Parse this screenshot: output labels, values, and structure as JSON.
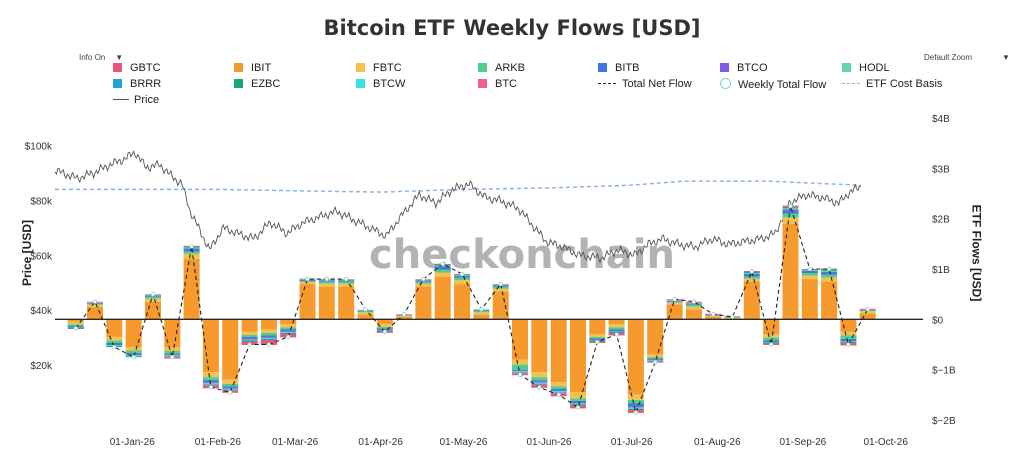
{
  "title": "Bitcoin ETF Weekly Flows [USD]",
  "controls": {
    "info_label": "Info On",
    "zoom_label": "Default Zoom",
    "dropdown_glyph": "▼"
  },
  "watermark": "checkonchain",
  "legend": [
    {
      "label": "GBTC",
      "kind": "box",
      "color": "#e8547f"
    },
    {
      "label": "IBIT",
      "kind": "box",
      "color": "#f79a2e"
    },
    {
      "label": "FBTC",
      "kind": "box",
      "color": "#f5c04f"
    },
    {
      "label": "ARKB",
      "kind": "box",
      "color": "#4fd08a"
    },
    {
      "label": "BITB",
      "kind": "box",
      "color": "#3a78e0"
    },
    {
      "label": "BTCO",
      "kind": "box",
      "color": "#7d5ee8"
    },
    {
      "label": "HODL",
      "kind": "box",
      "color": "#62d6a8"
    },
    {
      "label": "BRRR",
      "kind": "box",
      "color": "#1fa3d8"
    },
    {
      "label": "EZBC",
      "kind": "box",
      "color": "#1aa86d"
    },
    {
      "label": "BTCW",
      "kind": "box",
      "color": "#36e2e2"
    },
    {
      "label": "BTC",
      "kind": "box",
      "color": "#ef5f90"
    },
    {
      "label": "Total Net Flow",
      "kind": "dash",
      "color": "#222222"
    },
    {
      "label": "Weekly Total Flow",
      "kind": "circle",
      "color": "#7fd6b4"
    },
    {
      "label": "ETF Cost Basis",
      "kind": "ecb",
      "color": "#8cb6e0"
    },
    {
      "label": "Price",
      "kind": "line",
      "color": "#555555"
    }
  ],
  "chart_data": {
    "type": "bar",
    "stacked": true,
    "xlabel": "",
    "ylabel_left": "Price [USD]",
    "ylabel_right": "ETF Flows [USD]",
    "ylim_left": [
      0,
      110000
    ],
    "ylim_right": [
      -2000000000,
      4000000000
    ],
    "left_ticks": [
      "$20k",
      "$40k",
      "$60k",
      "$80k",
      "$100k"
    ],
    "left_tick_values": [
      20000,
      40000,
      60000,
      80000,
      100000
    ],
    "right_ticks": [
      "$−2B",
      "$−1B",
      "$0",
      "$1B",
      "$2B",
      "$3B",
      "$4B"
    ],
    "right_tick_values": [
      -2000000000,
      -1000000000,
      0,
      1000000000,
      2000000000,
      3000000000,
      4000000000
    ],
    "x_ticks": [
      "01-Jan-26",
      "01-Feb-26",
      "01-Mar-26",
      "01-Apr-26",
      "01-May-26",
      "01-Jun-26",
      "01-Jul-26",
      "01-Aug-26",
      "01-Sep-26",
      "01-Oct-26"
    ],
    "x_tick_days": [
      0,
      31,
      59,
      90,
      120,
      151,
      181,
      212,
      243,
      273
    ],
    "week_start_days": [
      -24,
      -17,
      -10,
      -3,
      4,
      11,
      18,
      25,
      32,
      39,
      46,
      53,
      60,
      67,
      74,
      81,
      88,
      95,
      102,
      109,
      116,
      123,
      130,
      137,
      144,
      151,
      158,
      165,
      172,
      179,
      186,
      193,
      200,
      207,
      214,
      221,
      228,
      235,
      242,
      249,
      256,
      263
    ],
    "weekly_flows_billions": [
      -0.18,
      0.35,
      -0.55,
      -0.75,
      0.5,
      -0.75,
      1.45,
      -1.35,
      -1.45,
      -0.5,
      -0.5,
      -0.35,
      0.8,
      0.8,
      0.8,
      0.2,
      -0.25,
      0.1,
      0.8,
      1.1,
      0.9,
      0.2,
      0.7,
      -1.1,
      -1.35,
      -1.5,
      -1.75,
      -0.45,
      -0.3,
      -1.85,
      -0.85,
      0.4,
      0.35,
      0.1,
      0.05,
      0.95,
      -0.5,
      2.25,
      1.0,
      1.0,
      -0.5,
      0.2
    ],
    "series": [
      {
        "name": "IBIT",
        "values": [
          -0.05,
          0.25,
          -0.35,
          -0.55,
          0.35,
          -0.55,
          1.2,
          -1.05,
          -1.2,
          -0.25,
          -0.2,
          -0.1,
          0.7,
          0.65,
          0.65,
          0.1,
          -0.1,
          0.05,
          0.65,
          0.85,
          0.7,
          0.1,
          0.55,
          -0.8,
          -1.05,
          -1.25,
          -1.45,
          -0.3,
          -0.1,
          -1.5,
          -0.7,
          0.3,
          0.2,
          0.05,
          0.02,
          0.75,
          -0.3,
          1.9,
          0.8,
          0.75,
          -0.25,
          0.12
        ]
      },
      {
        "name": "FBTC",
        "values": [
          -0.05,
          0.04,
          -0.07,
          -0.07,
          0.06,
          -0.08,
          0.1,
          -0.1,
          -0.08,
          -0.06,
          -0.07,
          -0.06,
          0.04,
          0.06,
          0.06,
          0.04,
          -0.05,
          0.02,
          0.06,
          0.08,
          0.08,
          0.04,
          0.06,
          -0.1,
          -0.1,
          -0.08,
          -0.12,
          -0.05,
          -0.06,
          -0.1,
          -0.05,
          0.03,
          0.05,
          0.02,
          0.01,
          0.06,
          -0.06,
          0.12,
          0.07,
          0.08,
          -0.07,
          0.04
        ]
      },
      {
        "name": "ARKB",
        "values": [
          -0.03,
          0.02,
          -0.05,
          -0.05,
          0.04,
          -0.05,
          0.05,
          -0.06,
          -0.05,
          -0.04,
          -0.05,
          -0.04,
          0.02,
          0.04,
          0.04,
          0.02,
          -0.03,
          0.01,
          0.04,
          0.06,
          0.05,
          0.03,
          0.04,
          -0.1,
          -0.06,
          -0.05,
          -0.05,
          -0.03,
          -0.04,
          -0.07,
          -0.03,
          0.02,
          0.04,
          0.01,
          0.01,
          0.04,
          -0.06,
          0.08,
          0.05,
          0.06,
          -0.07,
          0.02
        ]
      },
      {
        "name": "BITB",
        "values": [
          -0.01,
          0.01,
          -0.03,
          -0.03,
          0.02,
          -0.02,
          0.04,
          -0.04,
          -0.03,
          -0.03,
          -0.03,
          -0.03,
          0.02,
          0.02,
          0.02,
          0.01,
          -0.02,
          0.01,
          0.02,
          0.04,
          0.02,
          0.01,
          0.02,
          -0.02,
          -0.03,
          -0.03,
          -0.03,
          -0.02,
          -0.03,
          -0.05,
          -0.02,
          0.01,
          0.02,
          0.01,
          0.0,
          0.03,
          -0.02,
          0.05,
          0.03,
          0.03,
          -0.03,
          0.01
        ]
      },
      {
        "name": "BTCO",
        "values": [
          -0.01,
          0.01,
          -0.01,
          -0.01,
          0.01,
          -0.01,
          0.02,
          -0.02,
          -0.02,
          -0.02,
          -0.02,
          -0.02,
          0.01,
          0.01,
          0.01,
          0.01,
          -0.01,
          0.0,
          0.01,
          0.02,
          0.01,
          0.01,
          0.01,
          -0.01,
          -0.02,
          -0.02,
          -0.02,
          -0.01,
          -0.01,
          -0.03,
          -0.01,
          0.01,
          0.01,
          0.0,
          0.0,
          0.02,
          -0.01,
          0.03,
          0.01,
          0.02,
          -0.01,
          0.0
        ]
      },
      {
        "name": "HODL",
        "values": [
          -0.01,
          0.01,
          -0.02,
          -0.02,
          0.01,
          -0.02,
          0.02,
          -0.02,
          -0.02,
          -0.02,
          -0.02,
          -0.02,
          0.01,
          0.01,
          0.01,
          0.01,
          -0.01,
          0.0,
          0.01,
          0.02,
          0.02,
          0.01,
          0.01,
          -0.02,
          -0.02,
          -0.02,
          -0.02,
          -0.01,
          -0.01,
          -0.03,
          -0.01,
          0.01,
          0.01,
          0.0,
          0.0,
          0.02,
          -0.01,
          0.03,
          0.02,
          0.03,
          -0.02,
          0.0
        ]
      },
      {
        "name": "BRRR",
        "values": [
          -0.01,
          0.0,
          -0.01,
          -0.01,
          0.0,
          -0.01,
          0.01,
          -0.01,
          -0.01,
          -0.01,
          -0.01,
          -0.01,
          0.0,
          0.0,
          0.0,
          0.0,
          -0.01,
          0.0,
          0.0,
          0.01,
          0.01,
          0.0,
          0.0,
          -0.01,
          -0.01,
          -0.01,
          -0.01,
          -0.01,
          -0.01,
          -0.01,
          -0.01,
          0.0,
          0.0,
          0.0,
          0.0,
          0.01,
          -0.01,
          0.01,
          0.01,
          0.01,
          -0.01,
          0.0
        ]
      },
      {
        "name": "EZBC",
        "values": [
          -0.01,
          0.0,
          -0.01,
          -0.01,
          0.0,
          -0.01,
          0.01,
          -0.01,
          -0.01,
          -0.01,
          -0.01,
          -0.01,
          0.0,
          0.0,
          0.0,
          0.0,
          -0.01,
          0.0,
          0.0,
          0.01,
          0.0,
          0.0,
          0.0,
          -0.01,
          -0.01,
          -0.01,
          -0.01,
          -0.01,
          -0.01,
          -0.01,
          -0.01,
          0.0,
          0.0,
          0.0,
          0.0,
          0.01,
          -0.01,
          0.01,
          0.0,
          0.01,
          -0.01,
          0.0
        ]
      },
      {
        "name": "BTCW",
        "values": [
          0.0,
          0.0,
          0.0,
          0.0,
          0.0,
          0.0,
          0.0,
          0.0,
          0.0,
          0.0,
          0.0,
          0.0,
          0.0,
          0.0,
          0.0,
          0.0,
          0.0,
          0.0,
          0.0,
          0.0,
          0.0,
          0.0,
          0.0,
          0.0,
          0.0,
          0.0,
          0.0,
          0.0,
          0.0,
          0.0,
          0.0,
          0.0,
          0.0,
          0.0,
          0.0,
          0.0,
          0.0,
          0.0,
          0.0,
          0.0,
          0.0,
          0.0
        ]
      },
      {
        "name": "BTC",
        "values": [
          0.0,
          0.01,
          0.0,
          0.0,
          0.01,
          -0.01,
          0.01,
          -0.01,
          -0.01,
          -0.01,
          -0.01,
          -0.01,
          0.01,
          0.01,
          0.01,
          0.0,
          -0.01,
          0.01,
          0.01,
          0.01,
          0.01,
          0.0,
          0.01,
          -0.01,
          -0.01,
          -0.01,
          -0.01,
          -0.01,
          -0.01,
          -0.01,
          -0.01,
          0.01,
          0.01,
          0.01,
          0.01,
          0.01,
          -0.01,
          0.02,
          0.01,
          0.01,
          -0.01,
          0.01
        ]
      },
      {
        "name": "GBTC",
        "values": [
          -0.01,
          0.0,
          0.0,
          0.0,
          0.0,
          -0.02,
          0.0,
          -0.05,
          -0.03,
          -0.06,
          -0.09,
          -0.06,
          0.0,
          0.0,
          0.0,
          0.0,
          -0.02,
          0.0,
          0.0,
          0.0,
          0.0,
          0.0,
          0.0,
          -0.03,
          -0.05,
          -0.05,
          -0.05,
          -0.02,
          -0.04,
          -0.05,
          -0.01,
          0.01,
          0.01,
          0.01,
          0.01,
          0.01,
          -0.02,
          0.01,
          0.0,
          0.01,
          -0.04,
          0.01
        ]
      }
    ],
    "total_net_flow_billions": [
      -0.18,
      0.35,
      -0.55,
      -0.75,
      0.5,
      -0.75,
      1.45,
      -1.35,
      -1.45,
      -0.5,
      -0.5,
      -0.35,
      0.8,
      0.8,
      0.8,
      0.2,
      -0.25,
      0.1,
      0.8,
      1.1,
      0.9,
      0.2,
      0.7,
      -1.1,
      -1.35,
      -1.5,
      -1.75,
      -0.45,
      -0.3,
      -1.85,
      -0.85,
      0.4,
      0.35,
      0.1,
      0.05,
      0.95,
      -0.5,
      2.25,
      1.0,
      1.0,
      -0.5,
      0.2
    ],
    "price_points": [
      [
        -28,
        91000
      ],
      [
        -20,
        88000
      ],
      [
        -14,
        90000
      ],
      [
        -8,
        93000
      ],
      [
        -3,
        95000
      ],
      [
        1,
        97500
      ],
      [
        5,
        92000
      ],
      [
        10,
        93000
      ],
      [
        14,
        89000
      ],
      [
        18,
        86000
      ],
      [
        21,
        76000
      ],
      [
        25,
        68000
      ],
      [
        28,
        62000
      ],
      [
        33,
        70000
      ],
      [
        38,
        68000
      ],
      [
        44,
        66000
      ],
      [
        50,
        72000
      ],
      [
        56,
        68000
      ],
      [
        62,
        72000
      ],
      [
        68,
        74000
      ],
      [
        74,
        76000
      ],
      [
        80,
        73000
      ],
      [
        86,
        70000
      ],
      [
        92,
        67000
      ],
      [
        98,
        75000
      ],
      [
        104,
        82000
      ],
      [
        110,
        79000
      ],
      [
        116,
        84000
      ],
      [
        122,
        86000
      ],
      [
        128,
        81000
      ],
      [
        133,
        80000
      ],
      [
        140,
        77000
      ],
      [
        145,
        71000
      ],
      [
        150,
        65000
      ],
      [
        156,
        63000
      ],
      [
        162,
        60000
      ],
      [
        170,
        59000
      ],
      [
        176,
        62000
      ],
      [
        182,
        60000
      ],
      [
        187,
        64000
      ],
      [
        192,
        66000
      ],
      [
        198,
        64000
      ],
      [
        204,
        63000
      ],
      [
        210,
        66000
      ],
      [
        216,
        64000
      ],
      [
        222,
        65000
      ],
      [
        228,
        66000
      ],
      [
        233,
        68000
      ],
      [
        238,
        79000
      ],
      [
        244,
        82000
      ],
      [
        250,
        81000
      ],
      [
        256,
        79000
      ],
      [
        260,
        83000
      ],
      [
        264,
        85000
      ]
    ],
    "etf_cost_basis_points": [
      [
        -28,
        84000
      ],
      [
        30,
        84000
      ],
      [
        60,
        83500
      ],
      [
        90,
        83000
      ],
      [
        120,
        84000
      ],
      [
        150,
        84500
      ],
      [
        180,
        85500
      ],
      [
        200,
        87000
      ],
      [
        230,
        87000
      ],
      [
        264,
        85500
      ]
    ]
  }
}
